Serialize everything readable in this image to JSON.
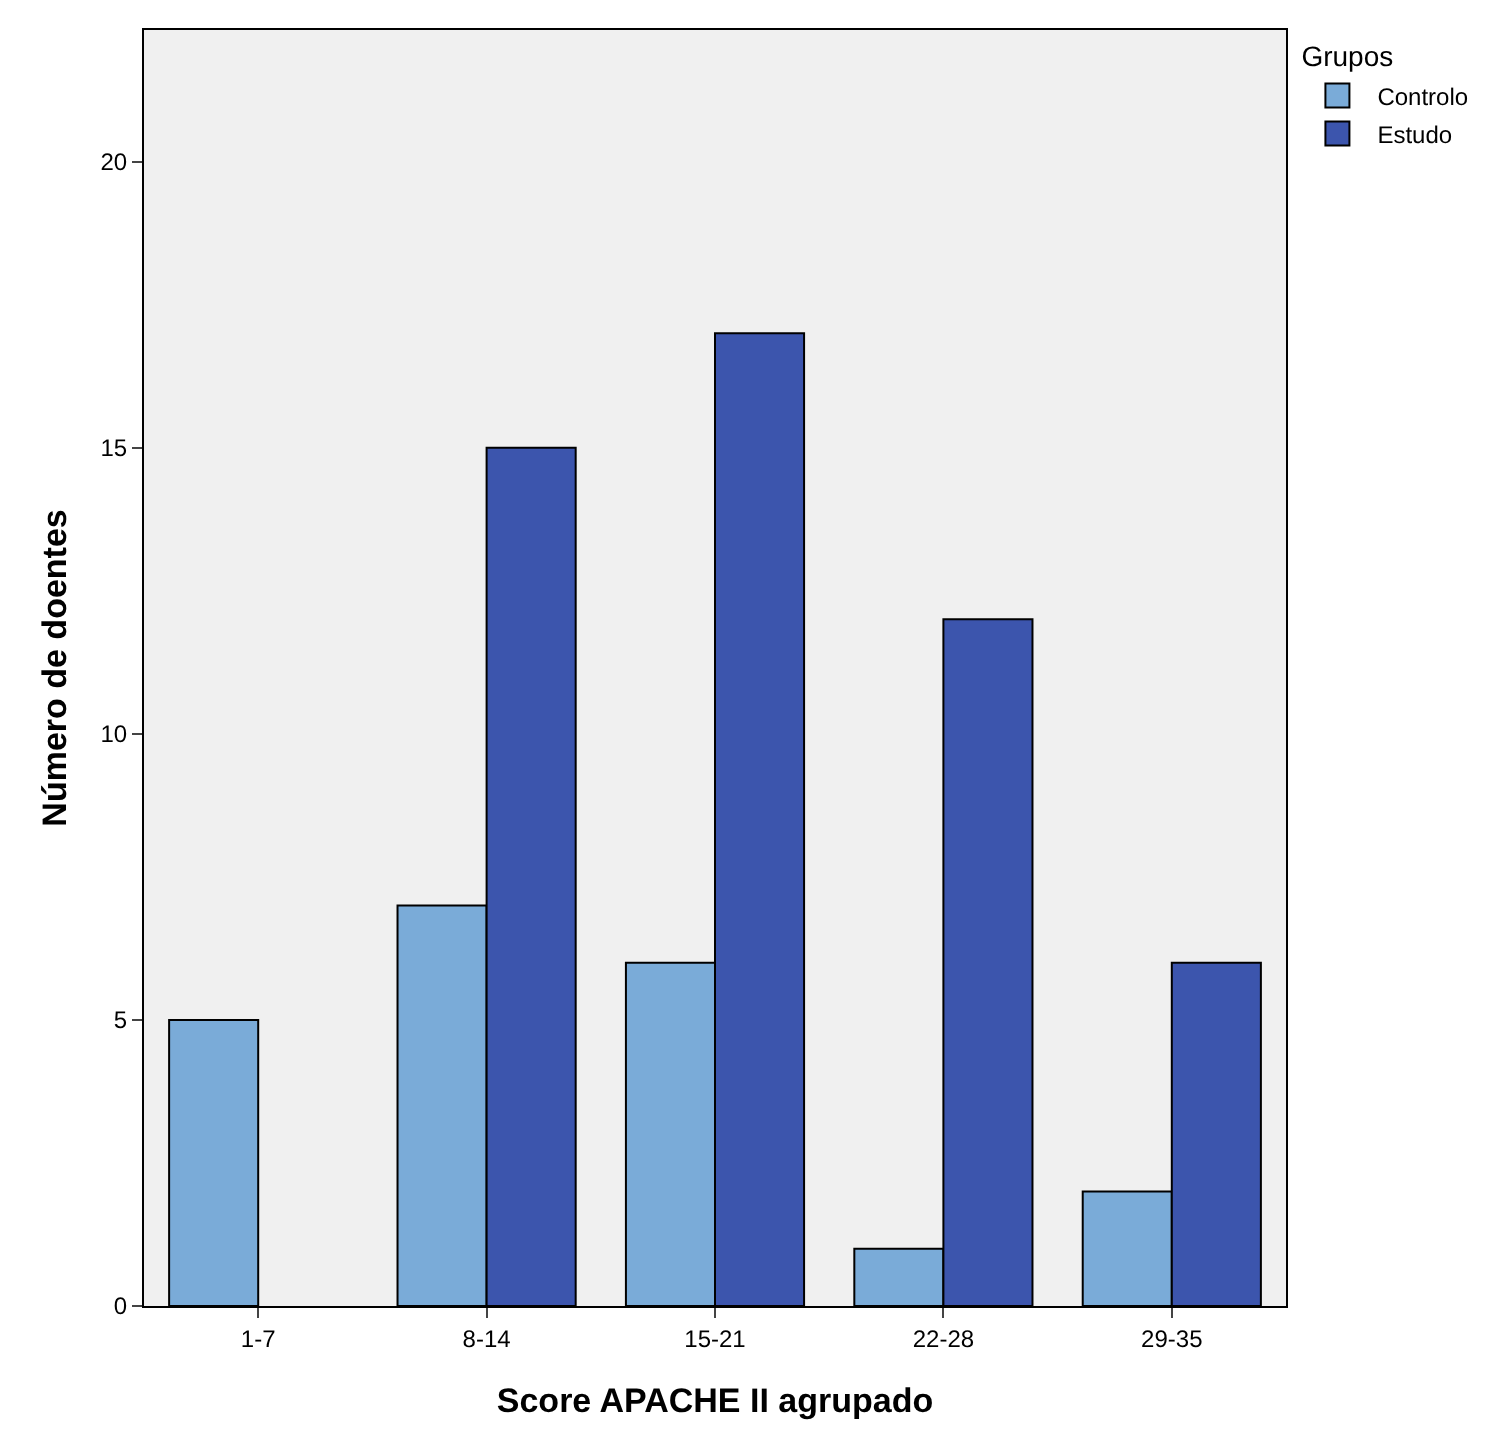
{
  "chart_data": {
    "type": "bar",
    "xlabel": "Score APACHE II agrupado",
    "ylabel": "Número de doentes",
    "legend_title": "Grupos",
    "categories": [
      "1-7",
      "8-14",
      "15-21",
      "22-28",
      "29-35"
    ],
    "series": [
      {
        "name": "Controlo",
        "color": "#7aabd8",
        "values": [
          5,
          7,
          6,
          1,
          2
        ]
      },
      {
        "name": "Estudo",
        "color": "#3c55ad",
        "values": [
          null,
          15,
          17,
          12,
          6
        ]
      }
    ],
    "ylim": [
      0,
      22.3
    ],
    "yticks": [
      0,
      5,
      10,
      15,
      20
    ],
    "grid": false,
    "legend": "top right"
  }
}
